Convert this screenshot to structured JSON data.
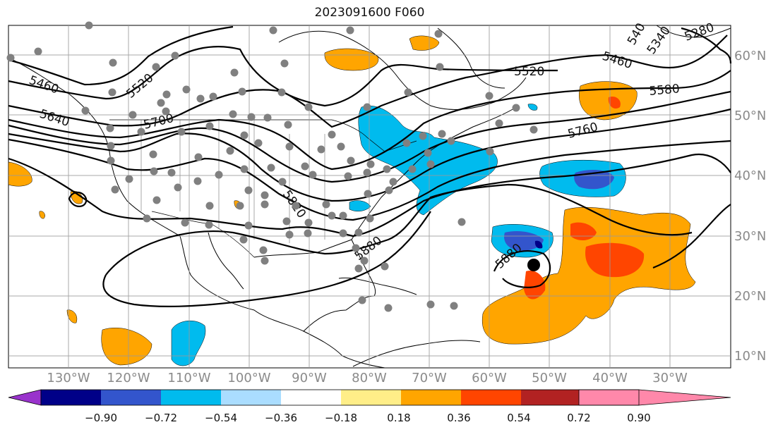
{
  "title": "2023091600 F060",
  "lat_labels": [
    "60°N",
    "50°N",
    "40°N",
    "30°N",
    "20°N",
    "10°N"
  ],
  "lon_labels": [
    "130°W",
    "120°W",
    "110°W",
    "100°W",
    "90°W",
    "80°W",
    "70°W",
    "60°W",
    "50°W",
    "40°W",
    "30°W"
  ],
  "contour_labels": [
    "5460",
    "5520",
    "5640",
    "5700",
    "5820",
    "5880",
    "5880",
    "5520",
    "5460",
    "5580",
    "5760",
    "540",
    "5340",
    "5280"
  ],
  "colorbar": {
    "ticks": [
      "−0.90",
      "−0.72",
      "−0.54",
      "−0.36",
      "−0.18",
      "0.18",
      "0.36",
      "0.54",
      "0.72",
      "0.90"
    ],
    "colors": [
      "#9933cc",
      "#000088",
      "#3355cc",
      "#00bbee",
      "#aaddff",
      "#ffffff",
      "#ffee88",
      "#ffa500",
      "#ff4500",
      "#b22222",
      "#ff88aa"
    ]
  },
  "colors": {
    "neg_strong": "#000088",
    "neg_mid": "#3355cc",
    "neg_light": "#00bbee",
    "pos_light": "#ffa500",
    "pos_mid": "#ff4500"
  }
}
